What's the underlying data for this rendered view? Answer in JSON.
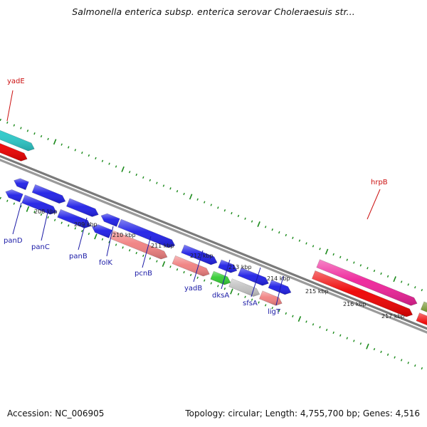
{
  "title": "Salmonella enterica subsp. enterica serovar Choleraesuis str...",
  "footer": {
    "accession": "Accession: NC_006905",
    "stats": "Topology: circular; Length: 4,755,700 bp; Genes: 4,516"
  },
  "colors": {
    "blue": "#1f1fe6",
    "red": "#ee0000",
    "salmon": "#f08080",
    "cyan": "#2bc8c8",
    "green": "#33cc33",
    "gray": "#c2c2c2",
    "magenta": "#ee2299",
    "olive": "#6b8e23",
    "backbone": "#8a8a8a",
    "ticks": "#1a8a1a",
    "label_blue": "#1a1aa6",
    "label_red": "#cc1111"
  },
  "scale_ticks": [
    "208 kbp",
    "209 kbp",
    "210 kbp",
    "211 kbp",
    "212 kbp",
    "213 kbp",
    "214 kbp",
    "215 kbp",
    "216 kbp",
    "217 kbp"
  ],
  "gene_labels": [
    {
      "name": "yadE",
      "color": "red"
    },
    {
      "name": "panD",
      "color": "blue"
    },
    {
      "name": "panC",
      "color": "blue"
    },
    {
      "name": "panB",
      "color": "blue"
    },
    {
      "name": "folK",
      "color": "blue"
    },
    {
      "name": "pcnB",
      "color": "blue"
    },
    {
      "name": "yadB",
      "color": "blue"
    },
    {
      "name": "dksA",
      "color": "blue"
    },
    {
      "name": "sfsA",
      "color": "blue"
    },
    {
      "name": "ligT",
      "color": "blue"
    },
    {
      "name": "hrpB",
      "color": "red"
    }
  ],
  "features": [
    {
      "name": "yadE",
      "track": "outer-top",
      "color": "cyan",
      "strand": "+"
    },
    {
      "name": "yadE-cds",
      "track": "outer-bottom",
      "color": "red",
      "strand": "+"
    },
    {
      "name": "panD",
      "track": "inner-top",
      "color": "blue",
      "strand": "-"
    },
    {
      "name": "panD-cds",
      "track": "inner-bottom",
      "color": "blue",
      "strand": "-"
    },
    {
      "name": "panC",
      "track": "inner-top",
      "color": "blue",
      "strand": "+"
    },
    {
      "name": "panC-cds",
      "track": "inner-bottom",
      "color": "blue",
      "strand": "+"
    },
    {
      "name": "panB",
      "track": "inner-top",
      "color": "blue",
      "strand": "+"
    },
    {
      "name": "panB-cds",
      "track": "inner-bottom",
      "color": "blue",
      "strand": "+"
    },
    {
      "name": "folK",
      "track": "inner-top",
      "color": "blue",
      "strand": "-"
    },
    {
      "name": "folK-cds",
      "track": "inner-bottom",
      "color": "blue",
      "strand": "-"
    },
    {
      "name": "pcnB",
      "track": "inner-top",
      "color": "blue",
      "strand": "+"
    },
    {
      "name": "pcnB-cds",
      "track": "inner-bottom",
      "color": "salmon",
      "strand": "+"
    },
    {
      "name": "yadB",
      "track": "inner-top",
      "color": "blue",
      "strand": "+"
    },
    {
      "name": "yadB-cds",
      "track": "inner-bottom",
      "color": "salmon",
      "strand": "+"
    },
    {
      "name": "dksA",
      "track": "inner-top",
      "color": "blue",
      "strand": "+"
    },
    {
      "name": "dksA-cds",
      "track": "inner-bottom",
      "color": "green",
      "strand": "+"
    },
    {
      "name": "sfsA",
      "track": "inner-top",
      "color": "blue",
      "strand": "+"
    },
    {
      "name": "sfsA-cds",
      "track": "inner-bottom",
      "color": "gray",
      "strand": "+"
    },
    {
      "name": "ligT",
      "track": "inner-top",
      "color": "blue",
      "strand": "+"
    },
    {
      "name": "ligT-cds",
      "track": "inner-bottom",
      "color": "salmon",
      "strand": "+"
    },
    {
      "name": "hrpB",
      "track": "outer-top",
      "color": "magenta",
      "strand": "+"
    },
    {
      "name": "hrpB-cds",
      "track": "outer-bottom",
      "color": "red",
      "strand": "+"
    },
    {
      "name": "next-gene",
      "track": "outer-top",
      "color": "olive",
      "strand": "+"
    },
    {
      "name": "next-gene-cds",
      "track": "outer-bottom",
      "color": "red",
      "strand": "+"
    }
  ]
}
